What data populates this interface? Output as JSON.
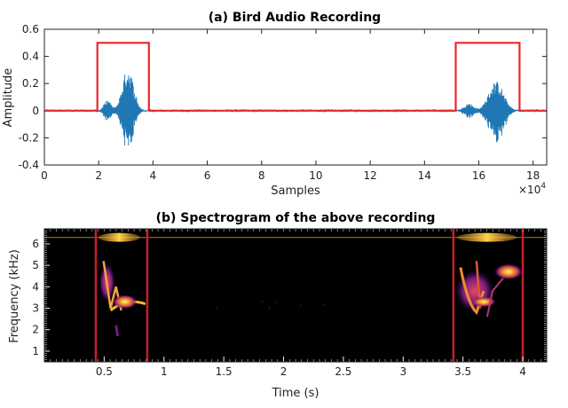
{
  "chart_data": [
    {
      "type": "line",
      "title": "(a) Bird Audio Recording",
      "xlabel": "Samples",
      "ylabel": "Amplitude",
      "x_exponent_label": "×10",
      "x_exponent_power": "4",
      "xlim": [
        0,
        18.5
      ],
      "ylim": [
        -0.4,
        0.6
      ],
      "xticks": [
        0,
        2,
        4,
        6,
        8,
        10,
        12,
        14,
        16,
        18
      ],
      "xtick_labels": [
        "0",
        "2",
        "4",
        "6",
        "8",
        "10",
        "12",
        "14",
        "16",
        "18"
      ],
      "yticks": [
        -0.4,
        -0.2,
        0,
        0.2,
        0.4,
        0.6
      ],
      "ytick_labels": [
        "-0.4",
        "-0.2",
        "0",
        "0.2",
        "0.4",
        "0.6"
      ],
      "series": [
        {
          "name": "waveform",
          "color": "#1f77b4",
          "bursts": [
            {
              "start": 2.0,
              "end": 3.8,
              "max": 0.32,
              "min": -0.32
            },
            {
              "start": 15.2,
              "end": 17.6,
              "max": 0.22,
              "min": -0.26
            }
          ],
          "noise_amplitude": 0.008
        },
        {
          "name": "detection",
          "color": "#e8272a",
          "x": [
            0,
            1.95,
            1.95,
            3.85,
            3.85,
            15.15,
            15.15,
            17.5,
            17.5,
            18.5
          ],
          "y": [
            0,
            0,
            0.5,
            0.5,
            0,
            0,
            0.5,
            0.5,
            0,
            0
          ]
        }
      ]
    },
    {
      "type": "heatmap",
      "title": "(b) Spectrogram of the above recording",
      "xlabel": "Time (s)",
      "ylabel": "Frequency (kHz)",
      "xlim": [
        0,
        4.2
      ],
      "ylim": [
        0.5,
        6.7
      ],
      "xticks": [
        0.5,
        1,
        1.5,
        2,
        2.5,
        3,
        3.5,
        4
      ],
      "xtick_labels": [
        "0.5",
        "1",
        "1.5",
        "2",
        "2.5",
        "3",
        "3.5",
        "4"
      ],
      "yticks": [
        1,
        2,
        3,
        4,
        5,
        6
      ],
      "ytick_labels": [
        "1",
        "2",
        "3",
        "4",
        "5",
        "6"
      ],
      "background": "#000000",
      "band_freq": 6.3,
      "segment_lines": [
        0.43,
        0.86,
        3.42,
        4.0
      ],
      "segment_color": "#c81e2a",
      "calls": [
        {
          "t0": 0.45,
          "t1": 0.8,
          "f_low": 1.6,
          "f_high": 5.3,
          "peak": 3.3
        },
        {
          "t0": 3.45,
          "t1": 3.95,
          "f_low": 2.5,
          "f_high": 5.3,
          "peak": 4.6
        }
      ]
    }
  ]
}
